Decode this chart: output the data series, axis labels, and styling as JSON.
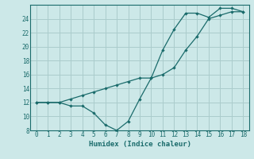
{
  "xlabel": "Humidex (Indice chaleur)",
  "background_color": "#cce8e8",
  "grid_color": "#aacccc",
  "line_color": "#1a6b6b",
  "xlim": [
    -0.5,
    18.5
  ],
  "ylim": [
    8,
    26
  ],
  "xticks": [
    0,
    1,
    2,
    3,
    4,
    5,
    6,
    7,
    8,
    9,
    10,
    11,
    12,
    13,
    14,
    15,
    16,
    17,
    18
  ],
  "yticks": [
    8,
    10,
    12,
    14,
    16,
    18,
    20,
    22,
    24
  ],
  "line1_x": [
    0,
    1,
    2,
    3,
    4,
    5,
    6,
    7,
    8,
    9,
    10,
    11,
    12,
    13,
    14,
    15,
    16,
    17,
    18
  ],
  "line1_y": [
    12.0,
    12.0,
    12.0,
    12.5,
    13.0,
    13.5,
    14.0,
    14.5,
    15.0,
    15.5,
    15.5,
    16.0,
    17.0,
    19.5,
    21.5,
    24.0,
    24.5,
    25.0,
    25.0
  ],
  "line2_x": [
    0,
    1,
    2,
    3,
    4,
    5,
    6,
    7,
    8,
    9,
    10,
    11,
    12,
    13,
    14,
    15,
    16,
    17,
    18
  ],
  "line2_y": [
    12.0,
    12.0,
    12.0,
    11.5,
    11.5,
    10.5,
    8.8,
    8.0,
    9.3,
    12.5,
    15.5,
    19.5,
    22.5,
    24.8,
    24.8,
    24.2,
    25.5,
    25.5,
    25.0
  ]
}
